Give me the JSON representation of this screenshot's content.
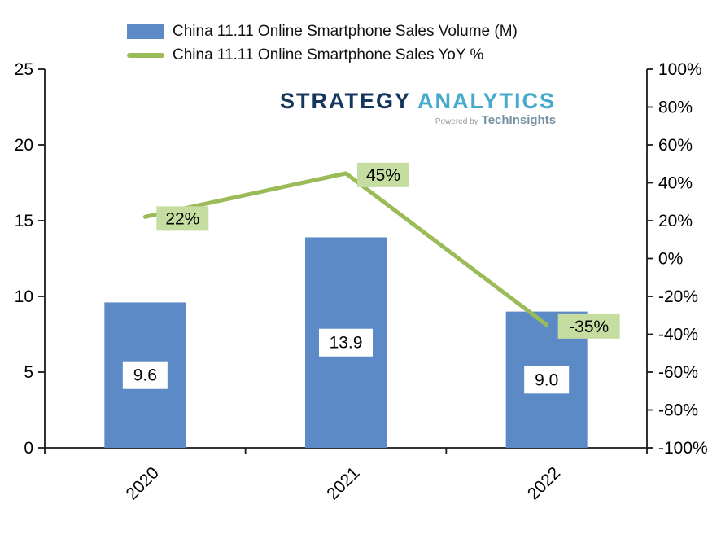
{
  "logo": {
    "part1": "STRATEGY",
    "part2": "ANALYTICS",
    "powered_by": "Powered by",
    "powered_brand": "TechInsights"
  },
  "chart_data": {
    "type": "combo",
    "categories": [
      "2020",
      "2021",
      "2022"
    ],
    "series": [
      {
        "name": "China 11.11 Online Smartphone Sales Volume (M)",
        "type": "bar",
        "axis": "left",
        "values": [
          9.6,
          13.9,
          9.0
        ],
        "labels": [
          "9.6",
          "13.9",
          "9.0"
        ],
        "color": "#5B8AC6",
        "label_bg": "#FFFFFF",
        "label_color": "#000000"
      },
      {
        "name": "China 11.11 Online Smartphone Sales YoY %",
        "type": "line",
        "axis": "right",
        "values": [
          22,
          45,
          -35
        ],
        "labels": [
          "22%",
          "45%",
          "-35%"
        ],
        "color": "#9BBB59",
        "label_bg": "#C6DDA2",
        "label_color": "#FFFFFF"
      }
    ],
    "left_axis": {
      "min": 0,
      "max": 25,
      "step": 5,
      "ticks": [
        "0",
        "5",
        "10",
        "15",
        "20",
        "25"
      ]
    },
    "right_axis": {
      "min": -100,
      "max": 100,
      "step": 20,
      "ticks": [
        "-100%",
        "-80%",
        "-60%",
        "-40%",
        "-20%",
        "0%",
        "20%",
        "40%",
        "60%",
        "80%",
        "100%"
      ]
    },
    "grid": false,
    "legend_position": "top"
  }
}
